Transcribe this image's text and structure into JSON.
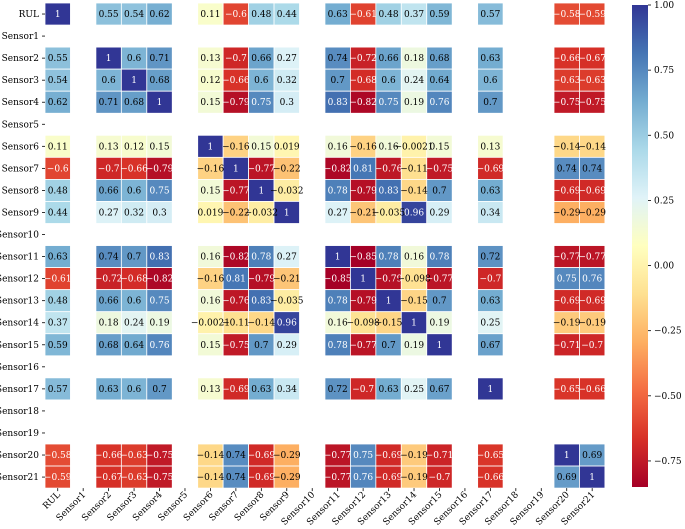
{
  "chart_data": {
    "type": "heatmap",
    "title": "",
    "xlabel": "",
    "ylabel": "",
    "variables": [
      "RUL",
      "Sensor1",
      "Sensor2",
      "Sensor3",
      "Sensor4",
      "Sensor5",
      "Sensor6",
      "Sensor7",
      "Sensor8",
      "Sensor9",
      "Sensor10",
      "Sensor11",
      "Sensor12",
      "Sensor13",
      "Sensor14",
      "Sensor15",
      "Sensor16",
      "Sensor17",
      "Sensor18",
      "Sensor19",
      "Sensor20",
      "Sensor21"
    ],
    "matrix": [
      [
        1,
        null,
        0.55,
        0.54,
        0.62,
        null,
        0.11,
        -0.6,
        0.48,
        0.44,
        null,
        0.63,
        -0.61,
        0.48,
        0.37,
        0.59,
        null,
        0.57,
        null,
        null,
        -0.58,
        -0.59
      ],
      [
        null,
        null,
        null,
        null,
        null,
        null,
        null,
        null,
        null,
        null,
        null,
        null,
        null,
        null,
        null,
        null,
        null,
        null,
        null,
        null,
        null,
        null
      ],
      [
        0.55,
        null,
        1,
        0.6,
        0.71,
        null,
        0.13,
        -0.7,
        0.66,
        0.27,
        null,
        0.74,
        -0.72,
        0.66,
        0.18,
        0.68,
        null,
        0.63,
        null,
        null,
        -0.66,
        -0.67
      ],
      [
        0.54,
        null,
        0.6,
        1,
        0.68,
        null,
        0.12,
        -0.66,
        0.6,
        0.32,
        null,
        0.7,
        -0.68,
        0.6,
        0.24,
        0.64,
        null,
        0.6,
        null,
        null,
        -0.63,
        -0.63
      ],
      [
        0.62,
        null,
        0.71,
        0.68,
        1,
        null,
        0.15,
        -0.79,
        0.75,
        0.3,
        null,
        0.83,
        -0.82,
        0.75,
        0.19,
        0.76,
        null,
        0.7,
        null,
        null,
        -0.75,
        -0.75
      ],
      [
        null,
        null,
        null,
        null,
        null,
        null,
        null,
        null,
        null,
        null,
        null,
        null,
        null,
        null,
        null,
        null,
        null,
        null,
        null,
        null,
        null,
        null
      ],
      [
        0.11,
        null,
        0.13,
        0.12,
        0.15,
        null,
        1,
        -0.16,
        0.15,
        0.019,
        null,
        0.16,
        -0.16,
        0.16,
        -0.0021,
        0.15,
        null,
        0.13,
        null,
        null,
        -0.14,
        -0.14
      ],
      [
        -0.6,
        null,
        -0.7,
        -0.66,
        -0.79,
        null,
        -0.16,
        1,
        -0.77,
        -0.22,
        null,
        -0.82,
        0.81,
        -0.76,
        -0.11,
        -0.75,
        null,
        -0.69,
        null,
        null,
        0.74,
        0.74
      ],
      [
        0.48,
        null,
        0.66,
        0.6,
        0.75,
        null,
        0.15,
        -0.77,
        1,
        -0.032,
        null,
        0.78,
        -0.79,
        0.83,
        -0.14,
        0.7,
        null,
        0.63,
        null,
        null,
        -0.69,
        -0.69
      ],
      [
        0.44,
        null,
        0.27,
        0.32,
        0.3,
        null,
        0.019,
        -0.22,
        -0.032,
        1,
        null,
        0.27,
        -0.21,
        -0.035,
        0.96,
        0.29,
        null,
        0.34,
        null,
        null,
        -0.29,
        -0.29
      ],
      [
        null,
        null,
        null,
        null,
        null,
        null,
        null,
        null,
        null,
        null,
        null,
        null,
        null,
        null,
        null,
        null,
        null,
        null,
        null,
        null,
        null,
        null
      ],
      [
        0.63,
        null,
        0.74,
        0.7,
        0.83,
        null,
        0.16,
        -0.82,
        0.78,
        0.27,
        null,
        1,
        -0.85,
        0.78,
        0.16,
        0.78,
        null,
        0.72,
        null,
        null,
        -0.77,
        -0.77
      ],
      [
        -0.61,
        null,
        -0.72,
        -0.68,
        -0.82,
        null,
        -0.16,
        0.81,
        -0.79,
        -0.21,
        null,
        -0.85,
        1,
        -0.79,
        -0.098,
        -0.77,
        null,
        -0.7,
        null,
        null,
        0.75,
        0.76
      ],
      [
        0.48,
        null,
        0.66,
        0.6,
        0.75,
        null,
        0.16,
        -0.76,
        0.83,
        -0.035,
        null,
        0.78,
        -0.79,
        1,
        -0.15,
        0.7,
        null,
        0.63,
        null,
        null,
        -0.69,
        -0.69
      ],
      [
        0.37,
        null,
        0.18,
        0.24,
        0.19,
        null,
        -0.0021,
        -0.11,
        -0.14,
        0.96,
        null,
        0.16,
        -0.098,
        -0.15,
        1,
        0.19,
        null,
        0.25,
        null,
        null,
        -0.19,
        -0.19
      ],
      [
        0.59,
        null,
        0.68,
        0.64,
        0.76,
        null,
        0.15,
        -0.75,
        0.7,
        0.29,
        null,
        0.78,
        -0.77,
        0.7,
        0.19,
        1,
        null,
        0.67,
        null,
        null,
        -0.71,
        -0.7
      ],
      [
        null,
        null,
        null,
        null,
        null,
        null,
        null,
        null,
        null,
        null,
        null,
        null,
        null,
        null,
        null,
        null,
        null,
        null,
        null,
        null,
        null,
        null
      ],
      [
        0.57,
        null,
        0.63,
        0.6,
        0.7,
        null,
        0.13,
        -0.69,
        0.63,
        0.34,
        null,
        0.72,
        -0.7,
        0.63,
        0.25,
        0.67,
        null,
        1,
        null,
        null,
        -0.65,
        -0.66
      ],
      [
        null,
        null,
        null,
        null,
        null,
        null,
        null,
        null,
        null,
        null,
        null,
        null,
        null,
        null,
        null,
        null,
        null,
        null,
        null,
        null,
        null,
        null
      ],
      [
        null,
        null,
        null,
        null,
        null,
        null,
        null,
        null,
        null,
        null,
        null,
        null,
        null,
        null,
        null,
        null,
        null,
        null,
        null,
        null,
        null,
        null
      ],
      [
        -0.58,
        null,
        -0.66,
        -0.63,
        -0.75,
        null,
        -0.14,
        0.74,
        -0.69,
        -0.29,
        null,
        -0.77,
        0.75,
        -0.69,
        -0.19,
        -0.71,
        null,
        -0.65,
        null,
        null,
        1,
        0.69
      ],
      [
        -0.59,
        null,
        -0.67,
        -0.63,
        -0.75,
        null,
        -0.14,
        0.74,
        -0.69,
        -0.29,
        null,
        -0.77,
        0.76,
        -0.69,
        -0.19,
        -0.7,
        null,
        -0.66,
        null,
        null,
        0.69,
        1
      ]
    ],
    "colormap": "RdYlBu",
    "vmin": -0.85,
    "vmax": 1.0,
    "colorbar_ticks": [
      1.0,
      0.75,
      0.5,
      0.25,
      0.0,
      -0.25,
      -0.5,
      -0.75
    ],
    "colorbar_tick_labels": [
      "1.00",
      "0.75",
      "0.50",
      "0.25",
      "0.00",
      "−0.25",
      "−0.50",
      "−0.75"
    ],
    "annotated": true,
    "colorbar_position": "right"
  }
}
